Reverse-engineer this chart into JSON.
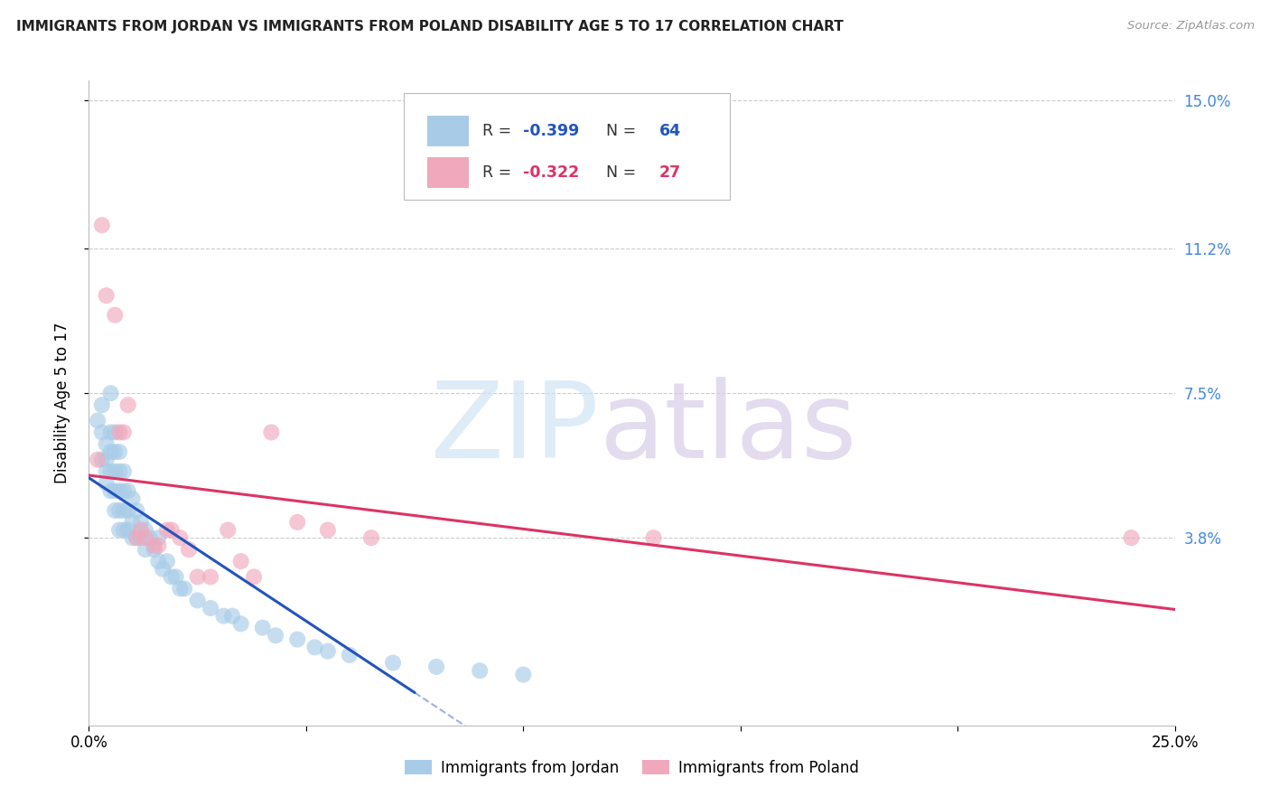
{
  "title": "IMMIGRANTS FROM JORDAN VS IMMIGRANTS FROM POLAND DISABILITY AGE 5 TO 17 CORRELATION CHART",
  "source": "Source: ZipAtlas.com",
  "ylabel": "Disability Age 5 to 17",
  "xlim": [
    0.0,
    0.25
  ],
  "ylim": [
    -0.01,
    0.155
  ],
  "xtick_positions": [
    0.0,
    0.05,
    0.1,
    0.15,
    0.2,
    0.25
  ],
  "xticklabels": [
    "0.0%",
    "",
    "",
    "",
    "",
    "25.0%"
  ],
  "ytick_positions": [
    0.038,
    0.075,
    0.112,
    0.15
  ],
  "yticklabels": [
    "3.8%",
    "7.5%",
    "11.2%",
    "15.0%"
  ],
  "jordan_color": "#A8CCE8",
  "poland_color": "#F0A8BC",
  "jordan_line_color": "#2255BB",
  "poland_line_color": "#DD3366",
  "jordan_r": -0.399,
  "jordan_n": 64,
  "poland_r": -0.322,
  "poland_n": 27,
  "background_color": "#FFFFFF",
  "grid_color": "#CCCCCC",
  "jordan_x": [
    0.002,
    0.003,
    0.003,
    0.003,
    0.004,
    0.004,
    0.004,
    0.004,
    0.005,
    0.005,
    0.005,
    0.005,
    0.005,
    0.006,
    0.006,
    0.006,
    0.006,
    0.006,
    0.007,
    0.007,
    0.007,
    0.007,
    0.007,
    0.008,
    0.008,
    0.008,
    0.008,
    0.009,
    0.009,
    0.009,
    0.01,
    0.01,
    0.01,
    0.011,
    0.011,
    0.012,
    0.012,
    0.013,
    0.013,
    0.014,
    0.015,
    0.016,
    0.016,
    0.017,
    0.018,
    0.019,
    0.02,
    0.021,
    0.022,
    0.025,
    0.028,
    0.031,
    0.033,
    0.035,
    0.04,
    0.043,
    0.048,
    0.052,
    0.055,
    0.06,
    0.07,
    0.08,
    0.09,
    0.1
  ],
  "jordan_y": [
    0.068,
    0.072,
    0.065,
    0.058,
    0.062,
    0.058,
    0.055,
    0.052,
    0.075,
    0.065,
    0.06,
    0.055,
    0.05,
    0.065,
    0.06,
    0.055,
    0.05,
    0.045,
    0.06,
    0.055,
    0.05,
    0.045,
    0.04,
    0.055,
    0.05,
    0.045,
    0.04,
    0.05,
    0.045,
    0.04,
    0.048,
    0.042,
    0.038,
    0.045,
    0.038,
    0.042,
    0.038,
    0.04,
    0.035,
    0.038,
    0.035,
    0.038,
    0.032,
    0.03,
    0.032,
    0.028,
    0.028,
    0.025,
    0.025,
    0.022,
    0.02,
    0.018,
    0.018,
    0.016,
    0.015,
    0.013,
    0.012,
    0.01,
    0.009,
    0.008,
    0.006,
    0.005,
    0.004,
    0.003
  ],
  "poland_x": [
    0.002,
    0.003,
    0.004,
    0.006,
    0.007,
    0.008,
    0.009,
    0.011,
    0.012,
    0.013,
    0.015,
    0.016,
    0.018,
    0.019,
    0.021,
    0.023,
    0.025,
    0.028,
    0.032,
    0.035,
    0.038,
    0.042,
    0.048,
    0.055,
    0.065,
    0.13,
    0.24
  ],
  "poland_y": [
    0.058,
    0.118,
    0.1,
    0.095,
    0.065,
    0.065,
    0.072,
    0.038,
    0.04,
    0.038,
    0.036,
    0.036,
    0.04,
    0.04,
    0.038,
    0.035,
    0.028,
    0.028,
    0.04,
    0.032,
    0.028,
    0.065,
    0.042,
    0.04,
    0.038,
    0.038,
    0.038
  ]
}
